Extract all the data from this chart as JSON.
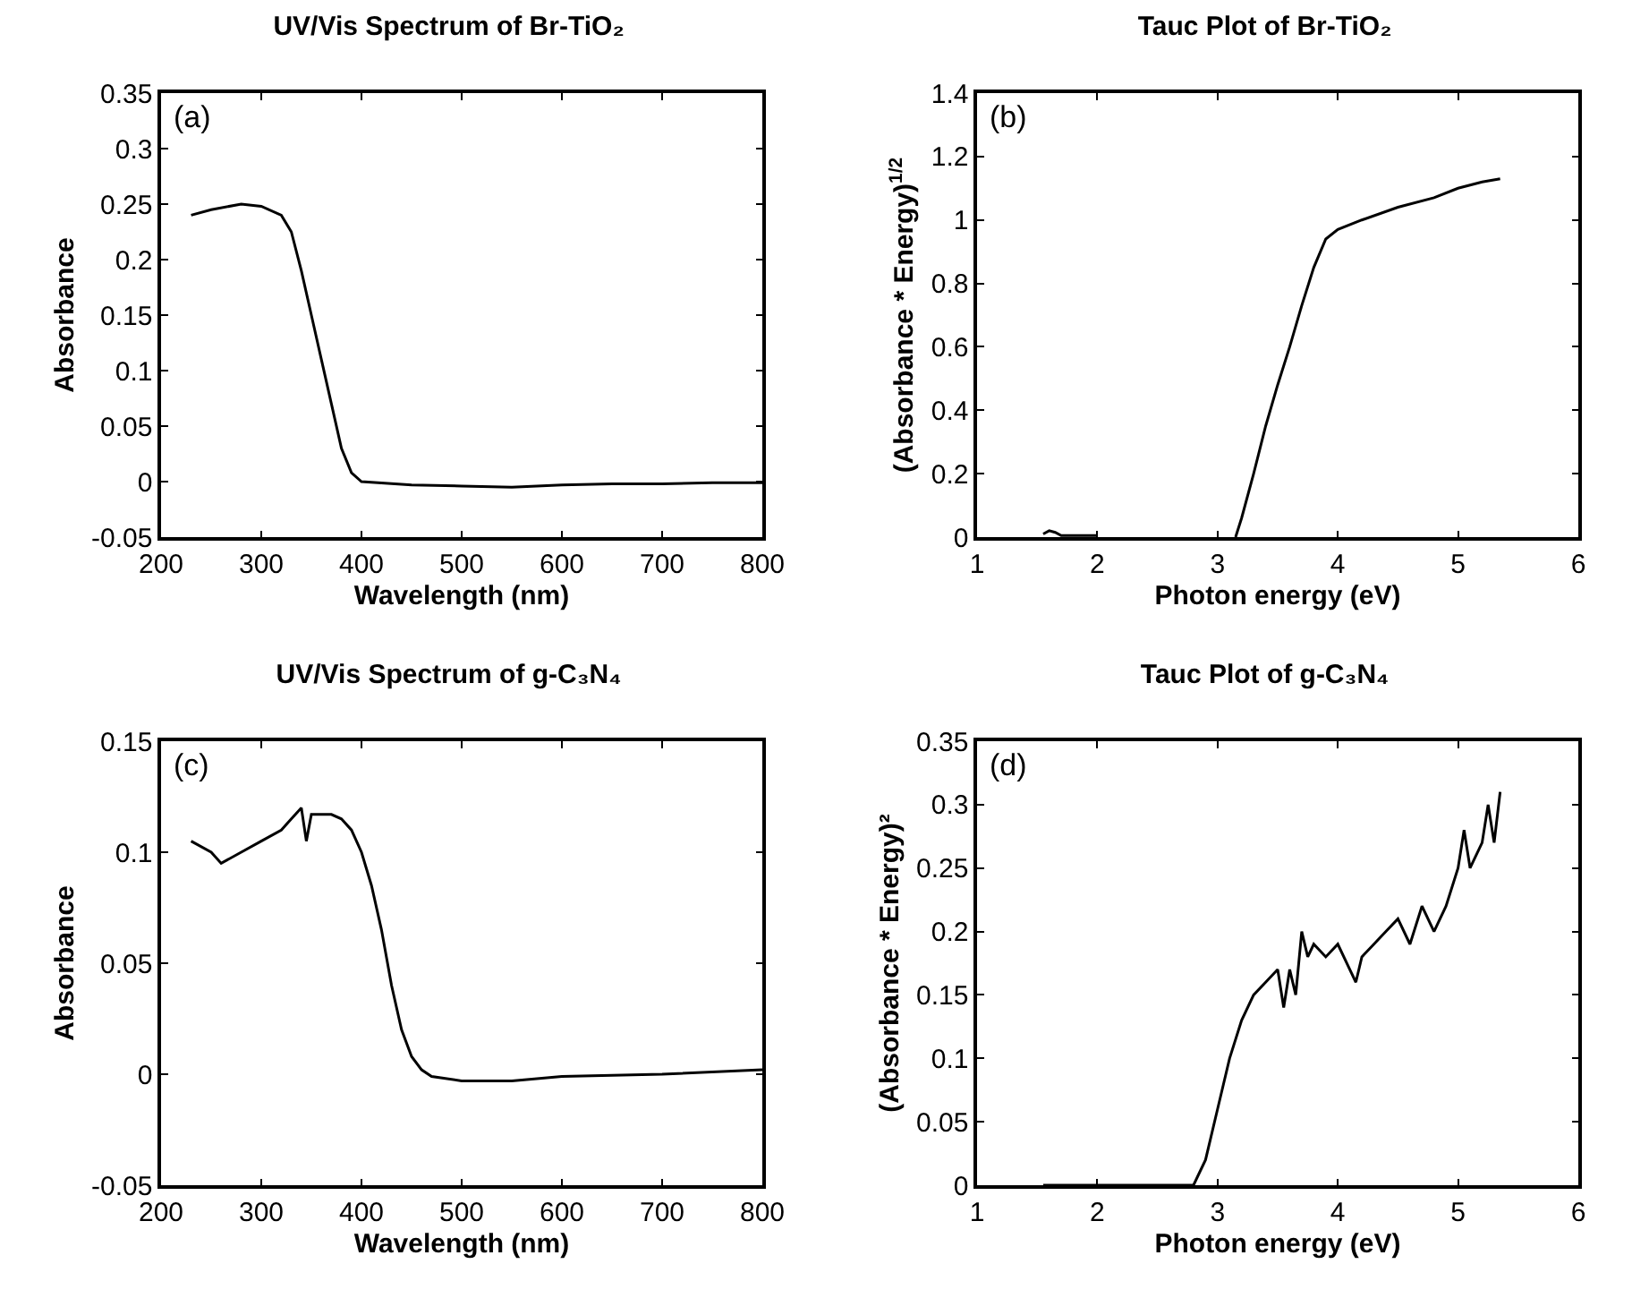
{
  "chart_data": [
    {
      "type": "line",
      "title": "UV/Vis Spectrum of Br-TiO₂",
      "xlabel": "Wavelength (nm)",
      "ylabel": "Absorbance",
      "annotations": [
        "(a)"
      ],
      "color": "#000000",
      "x": [
        230,
        250,
        280,
        300,
        320,
        330,
        340,
        350,
        360,
        370,
        380,
        390,
        400,
        450,
        500,
        550,
        600,
        650,
        700,
        750,
        800
      ],
      "values": [
        0.24,
        0.245,
        0.25,
        0.248,
        0.24,
        0.225,
        0.19,
        0.15,
        0.11,
        0.07,
        0.03,
        0.008,
        0,
        -0.003,
        -0.004,
        -0.005,
        -0.003,
        -0.002,
        -0.002,
        -0.001,
        -0.001
      ],
      "xlim": [
        200,
        800
      ],
      "xticks": [
        200,
        300,
        400,
        500,
        600,
        700,
        800
      ],
      "ylim": [
        -0.05,
        0.35
      ],
      "yticks": [
        -0.05,
        0,
        0.05,
        0.1,
        0.15,
        0.2,
        0.25,
        0.3,
        0.35
      ]
    },
    {
      "type": "line",
      "title": "Tauc Plot of Br-TiO₂",
      "xlabel": "Photon energy (eV)",
      "ylabel": "(Absorbance * Energy)$^{1/2}$",
      "annotations": [
        "(b)"
      ],
      "color": "#000000",
      "x": [
        1.55,
        1.6,
        1.65,
        1.7,
        1.8,
        2.0,
        2.5,
        3.15,
        3.2,
        3.3,
        3.4,
        3.5,
        3.6,
        3.7,
        3.8,
        3.9,
        4.0,
        4.2,
        4.5,
        4.8,
        5.0,
        5.2,
        5.35
      ],
      "values": [
        0.01,
        0.02,
        0.015,
        0.005,
        0.005,
        0.005,
        null,
        0,
        0.06,
        0.2,
        0.35,
        0.48,
        0.6,
        0.73,
        0.85,
        0.94,
        0.97,
        1.0,
        1.04,
        1.07,
        1.1,
        1.12,
        1.13
      ],
      "xlim": [
        1,
        6
      ],
      "xticks": [
        1,
        2,
        3,
        4,
        5,
        6
      ],
      "ylim": [
        0,
        1.4
      ],
      "yticks": [
        0,
        0.2,
        0.4,
        0.6,
        0.8,
        1,
        1.2,
        1.4
      ]
    },
    {
      "type": "line",
      "title": "UV/Vis Spectrum of g-C₃N₄",
      "xlabel": "Wavelength (nm)",
      "ylabel": "Absorbance",
      "annotations": [
        "(c)"
      ],
      "color": "#000000",
      "x": [
        230,
        250,
        260,
        280,
        300,
        320,
        330,
        340,
        345,
        350,
        370,
        380,
        390,
        400,
        410,
        420,
        430,
        440,
        450,
        460,
        470,
        500,
        550,
        600,
        700,
        800
      ],
      "values": [
        0.105,
        0.1,
        0.095,
        0.1,
        0.105,
        0.11,
        0.115,
        0.12,
        0.105,
        0.117,
        0.117,
        0.115,
        0.11,
        0.1,
        0.085,
        0.065,
        0.04,
        0.02,
        0.008,
        0.002,
        -0.001,
        -0.003,
        -0.003,
        -0.001,
        0,
        0.002
      ],
      "xlim": [
        200,
        800
      ],
      "xticks": [
        200,
        300,
        400,
        500,
        600,
        700,
        800
      ],
      "ylim": [
        -0.05,
        0.15
      ],
      "yticks": [
        -0.05,
        0,
        0.05,
        0.1,
        0.15
      ]
    },
    {
      "type": "line",
      "title": "Tauc Plot of g-C₃N₄",
      "xlabel": "Photon energy (eV)",
      "ylabel": "(Absorbance * Energy)²",
      "annotations": [
        "(d)"
      ],
      "color": "#000000",
      "x": [
        1.55,
        2.0,
        2.5,
        2.8,
        2.9,
        3.0,
        3.1,
        3.2,
        3.3,
        3.4,
        3.5,
        3.55,
        3.6,
        3.65,
        3.7,
        3.75,
        3.8,
        3.9,
        4.0,
        4.1,
        4.15,
        4.2,
        4.3,
        4.4,
        4.5,
        4.6,
        4.7,
        4.8,
        4.9,
        5.0,
        5.05,
        5.1,
        5.2,
        5.25,
        5.3,
        5.35
      ],
      "values": [
        0,
        0,
        0,
        0,
        0.02,
        0.06,
        0.1,
        0.13,
        0.15,
        0.16,
        0.17,
        0.14,
        0.17,
        0.15,
        0.2,
        0.18,
        0.19,
        0.18,
        0.19,
        0.17,
        0.16,
        0.18,
        0.19,
        0.2,
        0.21,
        0.19,
        0.22,
        0.2,
        0.22,
        0.25,
        0.28,
        0.25,
        0.27,
        0.3,
        0.27,
        0.31
      ],
      "xlim": [
        1,
        6
      ],
      "xticks": [
        1,
        2,
        3,
        4,
        5,
        6
      ],
      "ylim": [
        0,
        0.35
      ],
      "yticks": [
        0,
        0.05,
        0.1,
        0.15,
        0.2,
        0.25,
        0.3,
        0.35
      ]
    }
  ]
}
